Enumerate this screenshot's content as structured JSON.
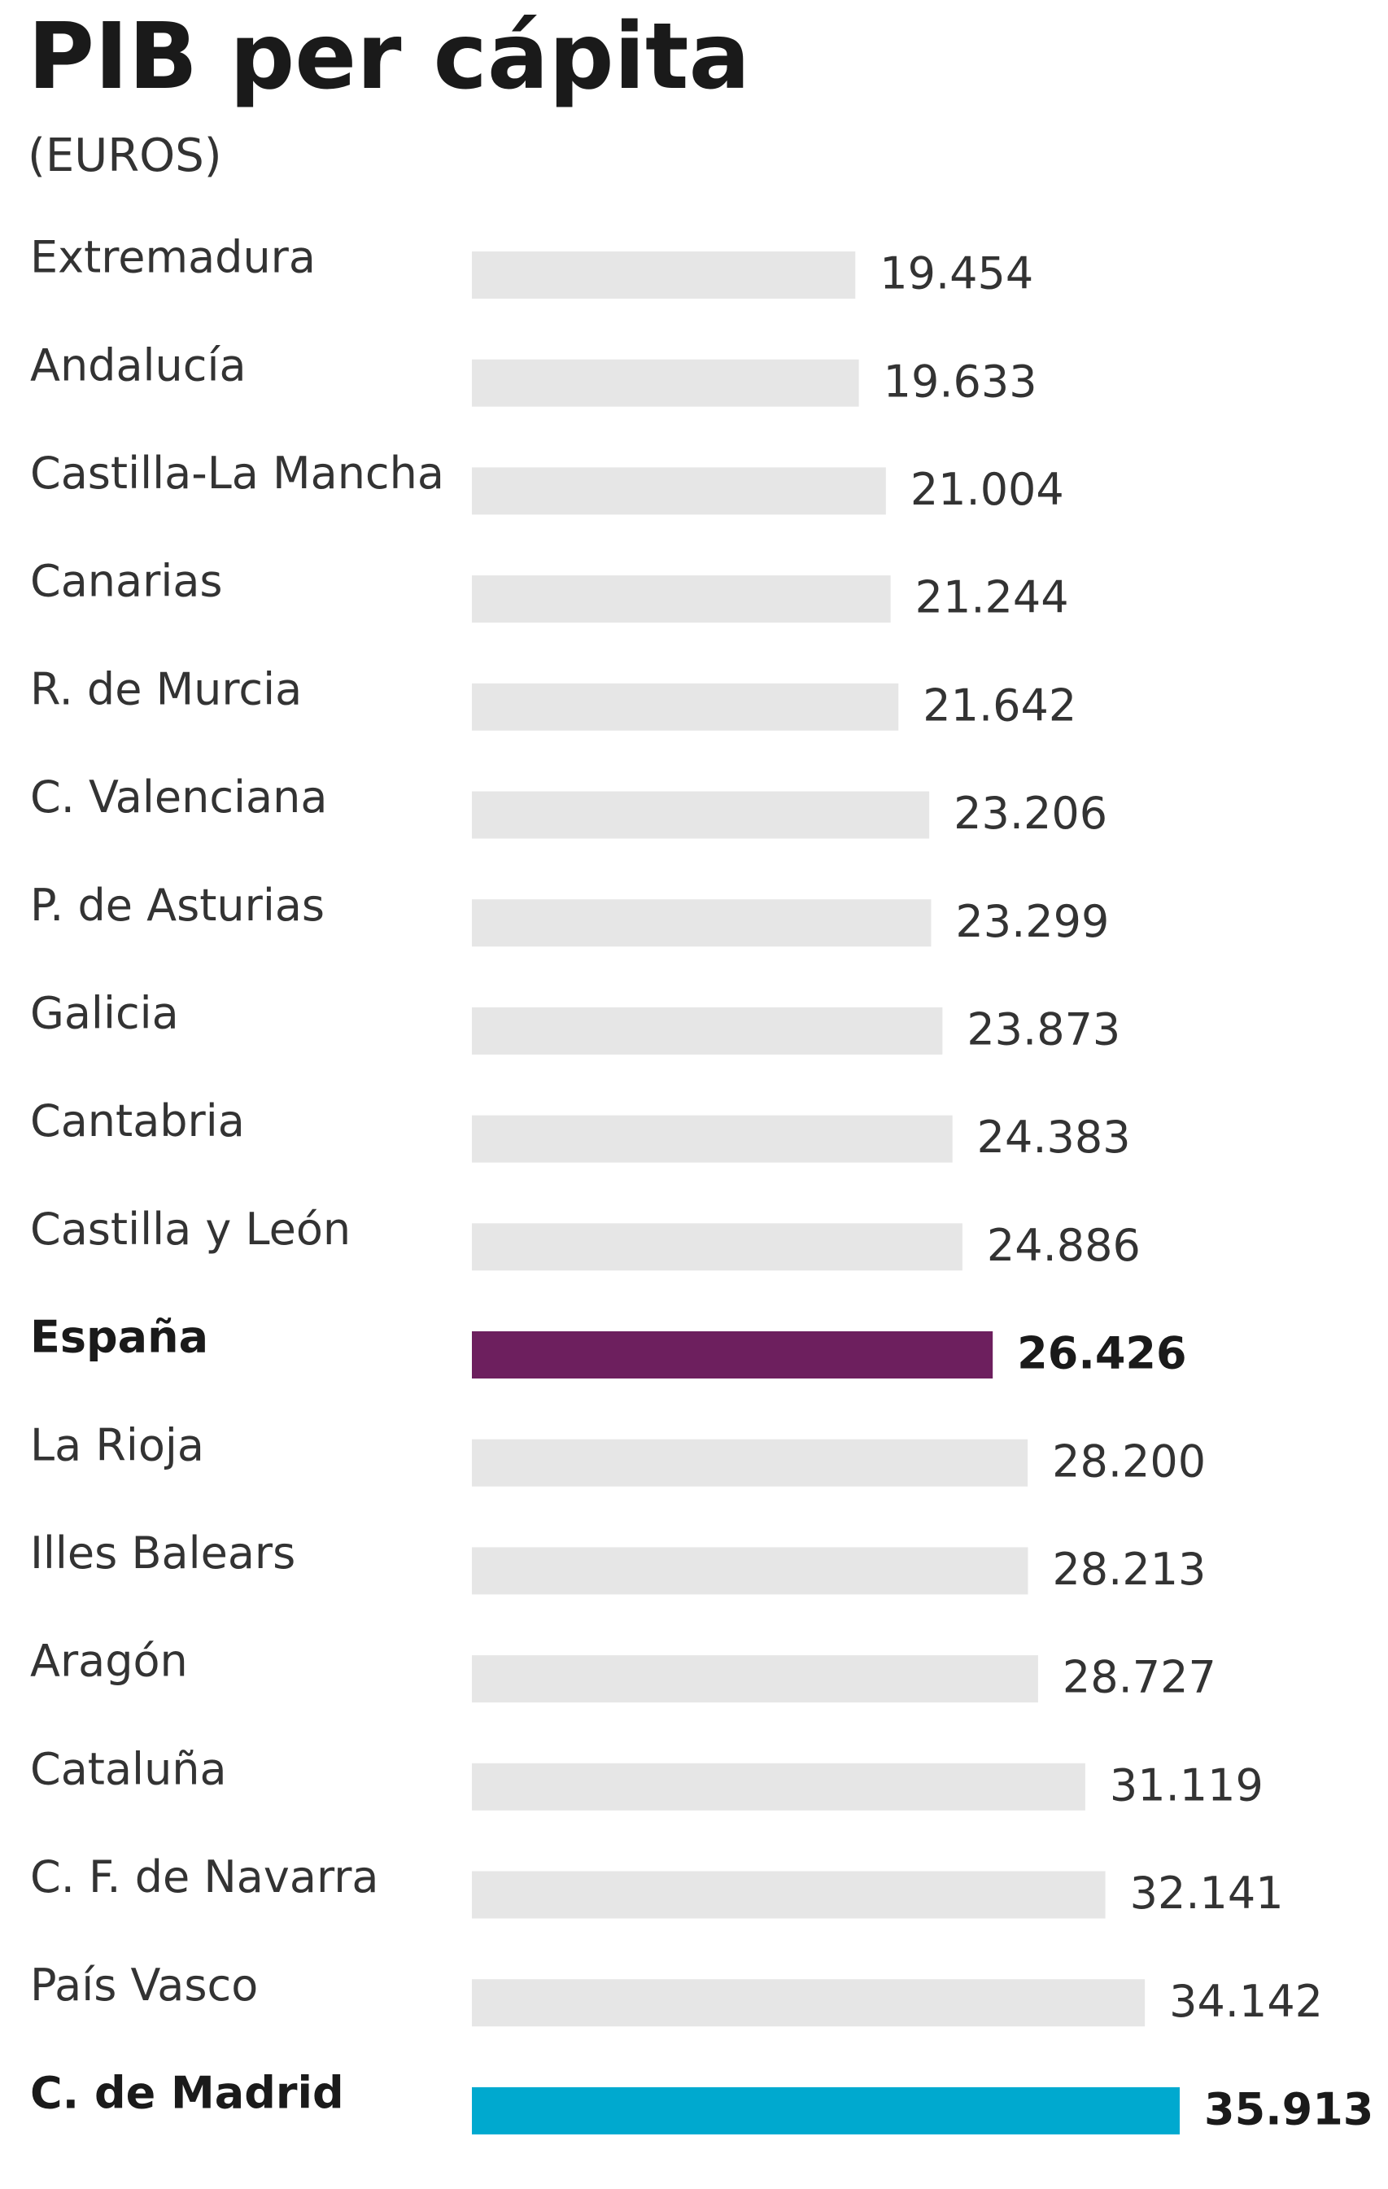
{
  "chart_data": {
    "type": "bar",
    "orientation": "horizontal",
    "title": "PIB per cápita",
    "subtitle": "(EUROS)",
    "categories": [
      "Extremadura",
      "Andalucía",
      "Castilla-La Mancha",
      "Canarias",
      "R. de Murcia",
      "C. Valenciana",
      "P. de Asturias",
      "Galicia",
      "Cantabria",
      "Castilla y León",
      "España",
      "La Rioja",
      "Illes Balears",
      "Aragón",
      "Cataluña",
      "C. F. de Navarra",
      "País Vasco",
      "C. de Madrid"
    ],
    "values": [
      19454,
      19633,
      21004,
      21244,
      21642,
      23206,
      23299,
      23873,
      24383,
      24886,
      26426,
      28200,
      28213,
      28727,
      31119,
      32141,
      34142,
      35913
    ],
    "value_labels": [
      "19.454",
      "19.633",
      "21.004",
      "21.244",
      "21.642",
      "23.206",
      "23.299",
      "23.873",
      "24.383",
      "24.886",
      "26.426",
      "28.200",
      "28.213",
      "28.727",
      "31.119",
      "32.141",
      "34.142",
      "35.913"
    ],
    "color": "#e6e6e6",
    "colors": [
      "#e6e6e6",
      "#e6e6e6",
      "#e6e6e6",
      "#e6e6e6",
      "#e6e6e6",
      "#e6e6e6",
      "#e6e6e6",
      "#e6e6e6",
      "#e6e6e6",
      "#e6e6e6",
      "#6d1f5e",
      "#e6e6e6",
      "#e6e6e6",
      "#e6e6e6",
      "#e6e6e6",
      "#e6e6e6",
      "#e6e6e6",
      "#00a9cf"
    ]
  }
}
